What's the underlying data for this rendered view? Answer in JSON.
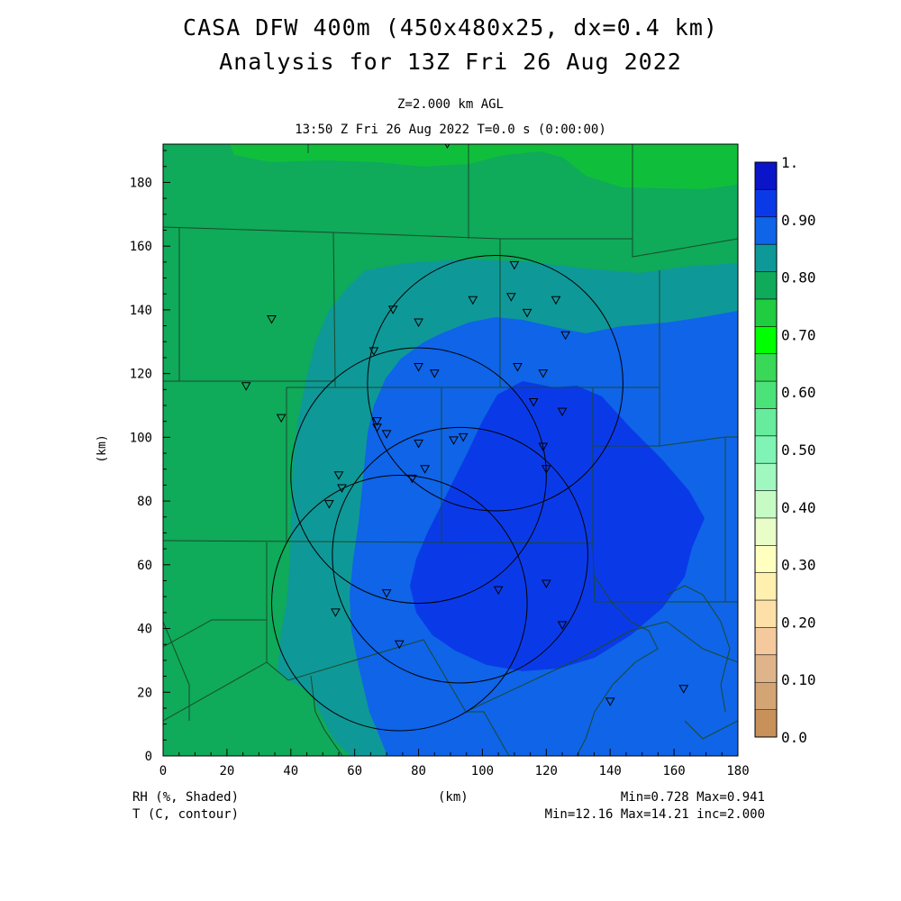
{
  "header": {
    "title_line1": "CASA DFW 400m (450x480x25, dx=0.4 km)",
    "title_line2": "Analysis for 13Z Fri 26 Aug 2022",
    "level": "Z=2.000 km AGL",
    "time": "13:50 Z Fri 26 Aug 2022   T=0.0 s (0:00:00)"
  },
  "axes": {
    "x_label": "(km)",
    "y_label": "(km)",
    "x_ticks": [
      "0",
      "20",
      "40",
      "60",
      "80",
      "100",
      "120",
      "140",
      "160",
      "180"
    ],
    "y_ticks": [
      "0",
      "20",
      "40",
      "60",
      "80",
      "100",
      "120",
      "140",
      "160",
      "180"
    ],
    "x_range": [
      0,
      180
    ],
    "y_range": [
      0,
      192
    ]
  },
  "colorbar": {
    "labels": [
      "0.0",
      "0.10",
      "0.20",
      "0.30",
      "0.40",
      "0.50",
      "0.60",
      "0.70",
      "0.80",
      "0.90",
      "1."
    ],
    "colors": [
      "#c8915a",
      "#d4a574",
      "#e0b48a",
      "#f5c99e",
      "#fde0a8",
      "#fff0b0",
      "#ffffc0",
      "#e8fdc8",
      "#c6fbc6",
      "#a0f8c0",
      "#80f4b4",
      "#66ec9c",
      "#4ce27a",
      "#3ad858",
      "#00ff00",
      "#20cc40",
      "#0faa5a",
      "#0f9898",
      "#0f64e8",
      "#0a3ae8",
      "#0a14c8"
    ]
  },
  "rh_field": {
    "variable": "RH",
    "min": 0.728,
    "max": 0.941,
    "colors": {
      "band_070": "#0fbf3c",
      "band_075": "#0faa5a",
      "band_080": "#0f9898",
      "band_085": "#0f64e8",
      "band_090": "#0a3ae8"
    }
  },
  "stations": [
    [
      89,
      192
    ],
    [
      110,
      154
    ],
    [
      109,
      144
    ],
    [
      123,
      143
    ],
    [
      97,
      143
    ],
    [
      114,
      139
    ],
    [
      80,
      136
    ],
    [
      72,
      140
    ],
    [
      126,
      132
    ],
    [
      34,
      137
    ],
    [
      66,
      127
    ],
    [
      80,
      122
    ],
    [
      85,
      120
    ],
    [
      111,
      122
    ],
    [
      119,
      120
    ],
    [
      26,
      116
    ],
    [
      116,
      111
    ],
    [
      125,
      108
    ],
    [
      37,
      106
    ],
    [
      67,
      105
    ],
    [
      67,
      103
    ],
    [
      70,
      101
    ],
    [
      94,
      100
    ],
    [
      80,
      98
    ],
    [
      91,
      99
    ],
    [
      119,
      97
    ],
    [
      120,
      90
    ],
    [
      82,
      90
    ],
    [
      78,
      87
    ],
    [
      55,
      88
    ],
    [
      56,
      84
    ],
    [
      52,
      79
    ],
    [
      70,
      51
    ],
    [
      105,
      52
    ],
    [
      120,
      54
    ],
    [
      54,
      45
    ],
    [
      125,
      41
    ],
    [
      74,
      35
    ],
    [
      140,
      17
    ],
    [
      163,
      21
    ]
  ],
  "radars": [
    {
      "cx": 74,
      "cy": 48,
      "r": 40
    },
    {
      "cx": 104,
      "cy": 117,
      "r": 40
    },
    {
      "cx": 93,
      "cy": 63,
      "r": 40
    },
    {
      "cx": 80,
      "cy": 88,
      "r": 40
    }
  ],
  "footer": {
    "left1": "RH (%, Shaded)",
    "left2": "T (C, contour)",
    "center": "(km)",
    "right1": "Min=0.728  Max=0.941",
    "right2": "Min=12.16 Max=14.21 inc=2.000"
  }
}
